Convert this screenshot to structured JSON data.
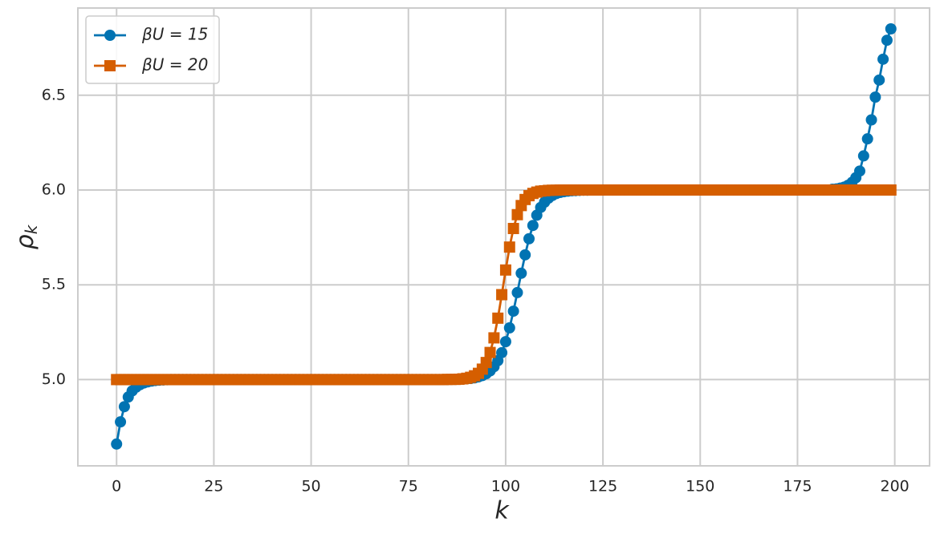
{
  "chart_data": {
    "type": "line",
    "xlabel": "k",
    "ylabel": "ρk",
    "x": [
      0,
      1,
      2,
      3,
      4,
      5,
      6,
      7,
      8,
      9,
      10,
      11,
      12,
      13,
      14,
      15,
      16,
      17,
      18,
      19,
      20,
      21,
      22,
      23,
      24,
      25,
      26,
      27,
      28,
      29,
      30,
      31,
      32,
      33,
      34,
      35,
      36,
      37,
      38,
      39,
      40,
      41,
      42,
      43,
      44,
      45,
      46,
      47,
      48,
      49,
      50,
      51,
      52,
      53,
      54,
      55,
      56,
      57,
      58,
      59,
      60,
      61,
      62,
      63,
      64,
      65,
      66,
      67,
      68,
      69,
      70,
      71,
      72,
      73,
      74,
      75,
      76,
      77,
      78,
      79,
      80,
      81,
      82,
      83,
      84,
      85,
      86,
      87,
      88,
      89,
      90,
      91,
      92,
      93,
      94,
      95,
      96,
      97,
      98,
      99,
      100,
      101,
      102,
      103,
      104,
      105,
      106,
      107,
      108,
      109,
      110,
      111,
      112,
      113,
      114,
      115,
      116,
      117,
      118,
      119,
      120,
      121,
      122,
      123,
      124,
      125,
      126,
      127,
      128,
      129,
      130,
      131,
      132,
      133,
      134,
      135,
      136,
      137,
      138,
      139,
      140,
      141,
      142,
      143,
      144,
      145,
      146,
      147,
      148,
      149,
      150,
      151,
      152,
      153,
      154,
      155,
      156,
      157,
      158,
      159,
      160,
      161,
      162,
      163,
      164,
      165,
      166,
      167,
      168,
      169,
      170,
      171,
      172,
      173,
      174,
      175,
      176,
      177,
      178,
      179,
      180,
      181,
      182,
      183,
      184,
      185,
      186,
      187,
      188,
      189,
      190,
      191,
      192,
      193,
      194,
      195,
      196,
      197,
      198,
      199
    ],
    "series": [
      {
        "name": "βU = 15",
        "color": "#0173b2",
        "marker": "circle",
        "values": [
          4.66,
          4.777,
          4.857,
          4.908,
          4.94,
          4.96,
          4.973,
          4.982,
          4.988,
          4.992,
          4.995,
          4.997,
          4.998,
          4.999,
          5,
          5,
          5,
          5,
          5,
          5,
          5,
          5,
          5,
          5,
          5,
          5,
          5,
          5,
          5,
          5,
          5,
          5,
          5,
          5,
          5,
          5,
          5,
          5,
          5,
          5,
          5,
          5,
          5,
          5,
          5,
          5,
          5,
          5,
          5,
          5,
          5,
          5,
          5,
          5,
          5,
          5,
          5,
          5,
          5,
          5,
          5,
          5,
          5,
          5,
          5,
          5,
          5,
          5,
          5,
          5,
          5,
          5,
          5,
          5,
          5,
          5,
          5,
          5,
          5,
          5,
          5,
          5,
          5,
          5,
          5,
          5,
          5.001,
          5.001,
          5.002,
          5.003,
          5.004,
          5.006,
          5.009,
          5.014,
          5.021,
          5.031,
          5.046,
          5.068,
          5.1,
          5.142,
          5.2,
          5.273,
          5.361,
          5.459,
          5.561,
          5.658,
          5.743,
          5.813,
          5.867,
          5.908,
          5.936,
          5.957,
          5.971,
          5.981,
          5.987,
          5.991,
          5.994,
          5.996,
          5.997,
          5.998,
          5.999,
          5.999,
          6,
          6,
          6,
          6,
          6,
          6,
          6,
          6,
          6,
          6,
          6,
          6,
          6,
          6,
          6,
          6,
          6,
          6,
          6,
          6,
          6,
          6,
          6,
          6,
          6,
          6,
          6,
          6,
          6,
          6,
          6,
          6,
          6,
          6,
          6,
          6,
          6,
          6,
          6,
          6,
          6,
          6,
          6,
          6,
          6,
          6,
          6,
          6,
          6,
          6,
          6,
          6,
          6,
          6,
          6,
          6,
          6,
          6,
          6,
          6,
          6,
          6,
          6.004,
          6.006,
          6.01,
          6.015,
          6.025,
          6.04,
          6.065,
          6.1,
          6.18,
          6.27,
          6.37,
          6.49,
          6.58,
          6.69,
          6.79,
          6.85
        ]
      },
      {
        "name": "βU = 20",
        "color": "#d55e00",
        "marker": "square",
        "values": [
          5,
          5,
          5,
          5,
          5,
          5,
          5,
          5,
          5,
          5,
          5,
          5,
          5,
          5,
          5,
          5,
          5,
          5,
          5,
          5,
          5,
          5,
          5,
          5,
          5,
          5,
          5,
          5,
          5,
          5,
          5,
          5,
          5,
          5,
          5,
          5,
          5,
          5,
          5,
          5,
          5,
          5,
          5,
          5,
          5,
          5,
          5,
          5,
          5,
          5,
          5,
          5,
          5,
          5,
          5,
          5,
          5,
          5,
          5,
          5,
          5,
          5,
          5,
          5,
          5,
          5,
          5,
          5,
          5,
          5,
          5,
          5,
          5,
          5,
          5,
          5,
          5,
          5,
          5,
          5,
          5,
          5,
          5,
          5,
          5,
          5.001,
          5.001,
          5.001,
          5.002,
          5.004,
          5.007,
          5.012,
          5.02,
          5.033,
          5.055,
          5.09,
          5.143,
          5.22,
          5.324,
          5.448,
          5.578,
          5.699,
          5.797,
          5.87,
          5.918,
          5.95,
          5.97,
          5.982,
          5.989,
          5.994,
          5.996,
          5.998,
          5.999,
          5.999,
          6,
          6,
          6,
          6,
          6,
          6,
          6,
          6,
          6,
          6,
          6,
          6,
          6,
          6,
          6,
          6,
          6,
          6,
          6,
          6,
          6,
          6,
          6,
          6,
          6,
          6,
          6,
          6,
          6,
          6,
          6,
          6,
          6,
          6,
          6,
          6,
          6,
          6,
          6,
          6,
          6,
          6,
          6,
          6,
          6,
          6,
          6,
          6,
          6,
          6,
          6,
          6,
          6,
          6,
          6,
          6,
          6,
          6,
          6,
          6,
          6,
          6,
          6,
          6,
          6,
          6,
          6,
          6,
          6,
          6,
          6,
          6,
          6,
          6,
          6,
          6,
          6,
          6,
          6,
          6,
          6,
          6,
          6,
          6,
          6,
          6
        ]
      }
    ],
    "xlim": [
      -9.95,
      208.95
    ],
    "xticks": [
      0,
      25,
      50,
      75,
      100,
      125,
      150,
      175,
      200
    ],
    "ylim": [
      4.545,
      6.96
    ],
    "yticks": [
      {
        "value": 5,
        "label": "5.0"
      },
      5.5,
      {
        "value": 6,
        "label": "6.0"
      },
      6.5
    ],
    "grid": true,
    "legend": "upper left"
  }
}
